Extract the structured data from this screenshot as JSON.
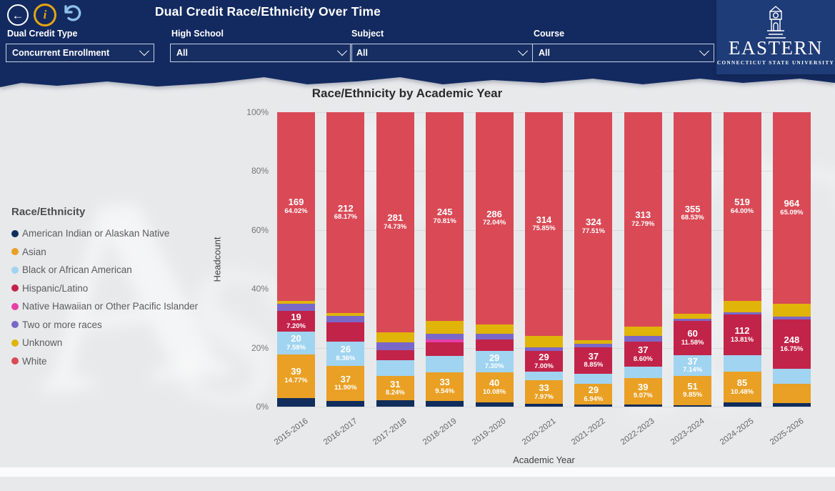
{
  "header": {
    "title": "Dual Credit Race/Ethnicity Over Time",
    "filters": [
      {
        "label": "Dual Credit Type",
        "value": "Concurrent Enrollment"
      },
      {
        "label": "High School",
        "value": "All"
      },
      {
        "label": "Subject",
        "value": "All"
      },
      {
        "label": "Course",
        "value": "All"
      }
    ],
    "logo": {
      "title": "EASTERN",
      "subtitle": "CONNECTICUT STATE UNIVERSITY"
    }
  },
  "legend": {
    "title": "Race/Ethnicity",
    "items": [
      {
        "label": "American Indian or Alaskan Native",
        "color": "#102D5C"
      },
      {
        "label": "Asian",
        "color": "#E9A024"
      },
      {
        "label": "Black or African American",
        "color": "#A0D4F0"
      },
      {
        "label": "Hispanic/Latino",
        "color": "#C22349"
      },
      {
        "label": "Native Hawaiian or Other Pacific Islander",
        "color": "#E53FA8"
      },
      {
        "label": "Two or more races",
        "color": "#7A68C8"
      },
      {
        "label": "Unknown",
        "color": "#E0B408"
      },
      {
        "label": "White",
        "color": "#D94A56"
      }
    ]
  },
  "chart_data": {
    "type": "bar",
    "variant": "100%-stacked-column",
    "title": "Race/Ethnicity by Academic Year",
    "xlabel": "Academic Year",
    "ylabel": "Headcount",
    "y_ticks": [
      "100%",
      "80%",
      "60%",
      "40%",
      "20%",
      "0%"
    ],
    "grid": "dotted-horizontal",
    "legend_position": "left",
    "categories": [
      "2015-2016",
      "2016-2017",
      "2017-2018",
      "2018-2019",
      "2019-2020",
      "2020-2021",
      "2021-2022",
      "2022-2023",
      "2023-2024",
      "2024-2025",
      "2025-2026"
    ],
    "series": [
      {
        "name": "American Indian or Alaskan Native",
        "color": "#102D5C",
        "pct": [
          3.03,
          1.93,
          2.13,
          2.02,
          1.51,
          0.97,
          0.72,
          0.7,
          0.58,
          1.36,
          1.22
        ],
        "labels": [
          null,
          null,
          null,
          null,
          null,
          null,
          null,
          null,
          null,
          null,
          null
        ]
      },
      {
        "name": "Asian",
        "color": "#E9A024",
        "pct": [
          14.77,
          11.9,
          8.24,
          9.54,
          10.08,
          7.97,
          6.94,
          9.07,
          9.85,
          10.48,
          6.55
        ],
        "labels": [
          {
            "count": "39",
            "pct": "14.77%"
          },
          {
            "count": "37",
            "pct": "11.90%"
          },
          {
            "count": "31",
            "pct": "8.24%"
          },
          {
            "count": "33",
            "pct": "9.54%"
          },
          {
            "count": "40",
            "pct": "10.08%"
          },
          {
            "count": "33",
            "pct": "7.97%"
          },
          {
            "count": "29",
            "pct": "6.94%"
          },
          {
            "count": "39",
            "pct": "9.07%"
          },
          {
            "count": "51",
            "pct": "9.85%"
          },
          {
            "count": "85",
            "pct": "10.48%"
          },
          null
        ]
      },
      {
        "name": "Black or African American",
        "color": "#A0D4F0",
        "pct": [
          7.58,
          8.36,
          5.32,
          5.78,
          7.3,
          2.9,
          3.59,
          3.72,
          7.14,
          5.55,
          5.06
        ],
        "labels": [
          {
            "count": "20",
            "pct": "7.58%"
          },
          {
            "count": "26",
            "pct": "8.36%"
          },
          null,
          null,
          {
            "count": "29",
            "pct": "7.30%"
          },
          null,
          null,
          null,
          {
            "count": "37",
            "pct": "7.14%"
          },
          null,
          null
        ]
      },
      {
        "name": "Hispanic/Latino",
        "color": "#C22349",
        "pct": [
          7.2,
          6.43,
          3.46,
          4.62,
          4.03,
          7.0,
          8.85,
          8.6,
          11.58,
          13.81,
          16.75
        ],
        "labels": [
          {
            "count": "19",
            "pct": "7.20%"
          },
          null,
          null,
          null,
          null,
          {
            "count": "29",
            "pct": "7.00%"
          },
          {
            "count": "37",
            "pct": "8.85%"
          },
          {
            "count": "37",
            "pct": "8.60%"
          },
          {
            "count": "60",
            "pct": "11.58%"
          },
          {
            "count": "112",
            "pct": "13.81%"
          },
          {
            "count": "248",
            "pct": "16.75%"
          }
        ]
      },
      {
        "name": "Native Hawaiian or Other Pacific Islander",
        "color": "#E53FA8",
        "pct": [
          0,
          0,
          0,
          0.87,
          0,
          0,
          0,
          0,
          0,
          0,
          0.14
        ],
        "labels": [
          null,
          null,
          null,
          null,
          null,
          null,
          null,
          null,
          null,
          null,
          null
        ]
      },
      {
        "name": "Two or more races",
        "color": "#7A68C8",
        "pct": [
          2.27,
          2.25,
          2.66,
          2.02,
          1.76,
          1.21,
          1.2,
          1.86,
          0.77,
          0.86,
          0.81
        ],
        "labels": [
          null,
          null,
          null,
          null,
          null,
          null,
          null,
          null,
          null,
          null,
          null
        ]
      },
      {
        "name": "Unknown",
        "color": "#E0B408",
        "pct": [
          1.14,
          0.96,
          3.46,
          4.34,
          3.27,
          4.11,
          1.2,
          3.26,
          1.54,
          3.95,
          4.39
        ],
        "labels": [
          null,
          null,
          null,
          null,
          null,
          null,
          null,
          null,
          null,
          null,
          null
        ]
      },
      {
        "name": "White",
        "color": "#D94A56",
        "pct": [
          64.02,
          68.17,
          74.73,
          70.81,
          72.04,
          75.85,
          77.51,
          72.79,
          68.53,
          64.0,
          65.09
        ],
        "labels": [
          {
            "count": "169",
            "pct": "64.02%"
          },
          {
            "count": "212",
            "pct": "68.17%"
          },
          {
            "count": "281",
            "pct": "74.73%"
          },
          {
            "count": "245",
            "pct": "70.81%"
          },
          {
            "count": "286",
            "pct": "72.04%"
          },
          {
            "count": "314",
            "pct": "75.85%"
          },
          {
            "count": "324",
            "pct": "77.51%"
          },
          {
            "count": "313",
            "pct": "72.79%"
          },
          {
            "count": "355",
            "pct": "68.53%"
          },
          {
            "count": "519",
            "pct": "64.00%"
          },
          {
            "count": "964",
            "pct": "65.09%"
          }
        ]
      }
    ]
  },
  "colors": {
    "header_bg": "#132A60",
    "logo_bg": "#1E3C78",
    "canvas_bg": "#E8E9EB",
    "info_icon": "#E5A512",
    "undo_icon": "#8FBFE8"
  }
}
